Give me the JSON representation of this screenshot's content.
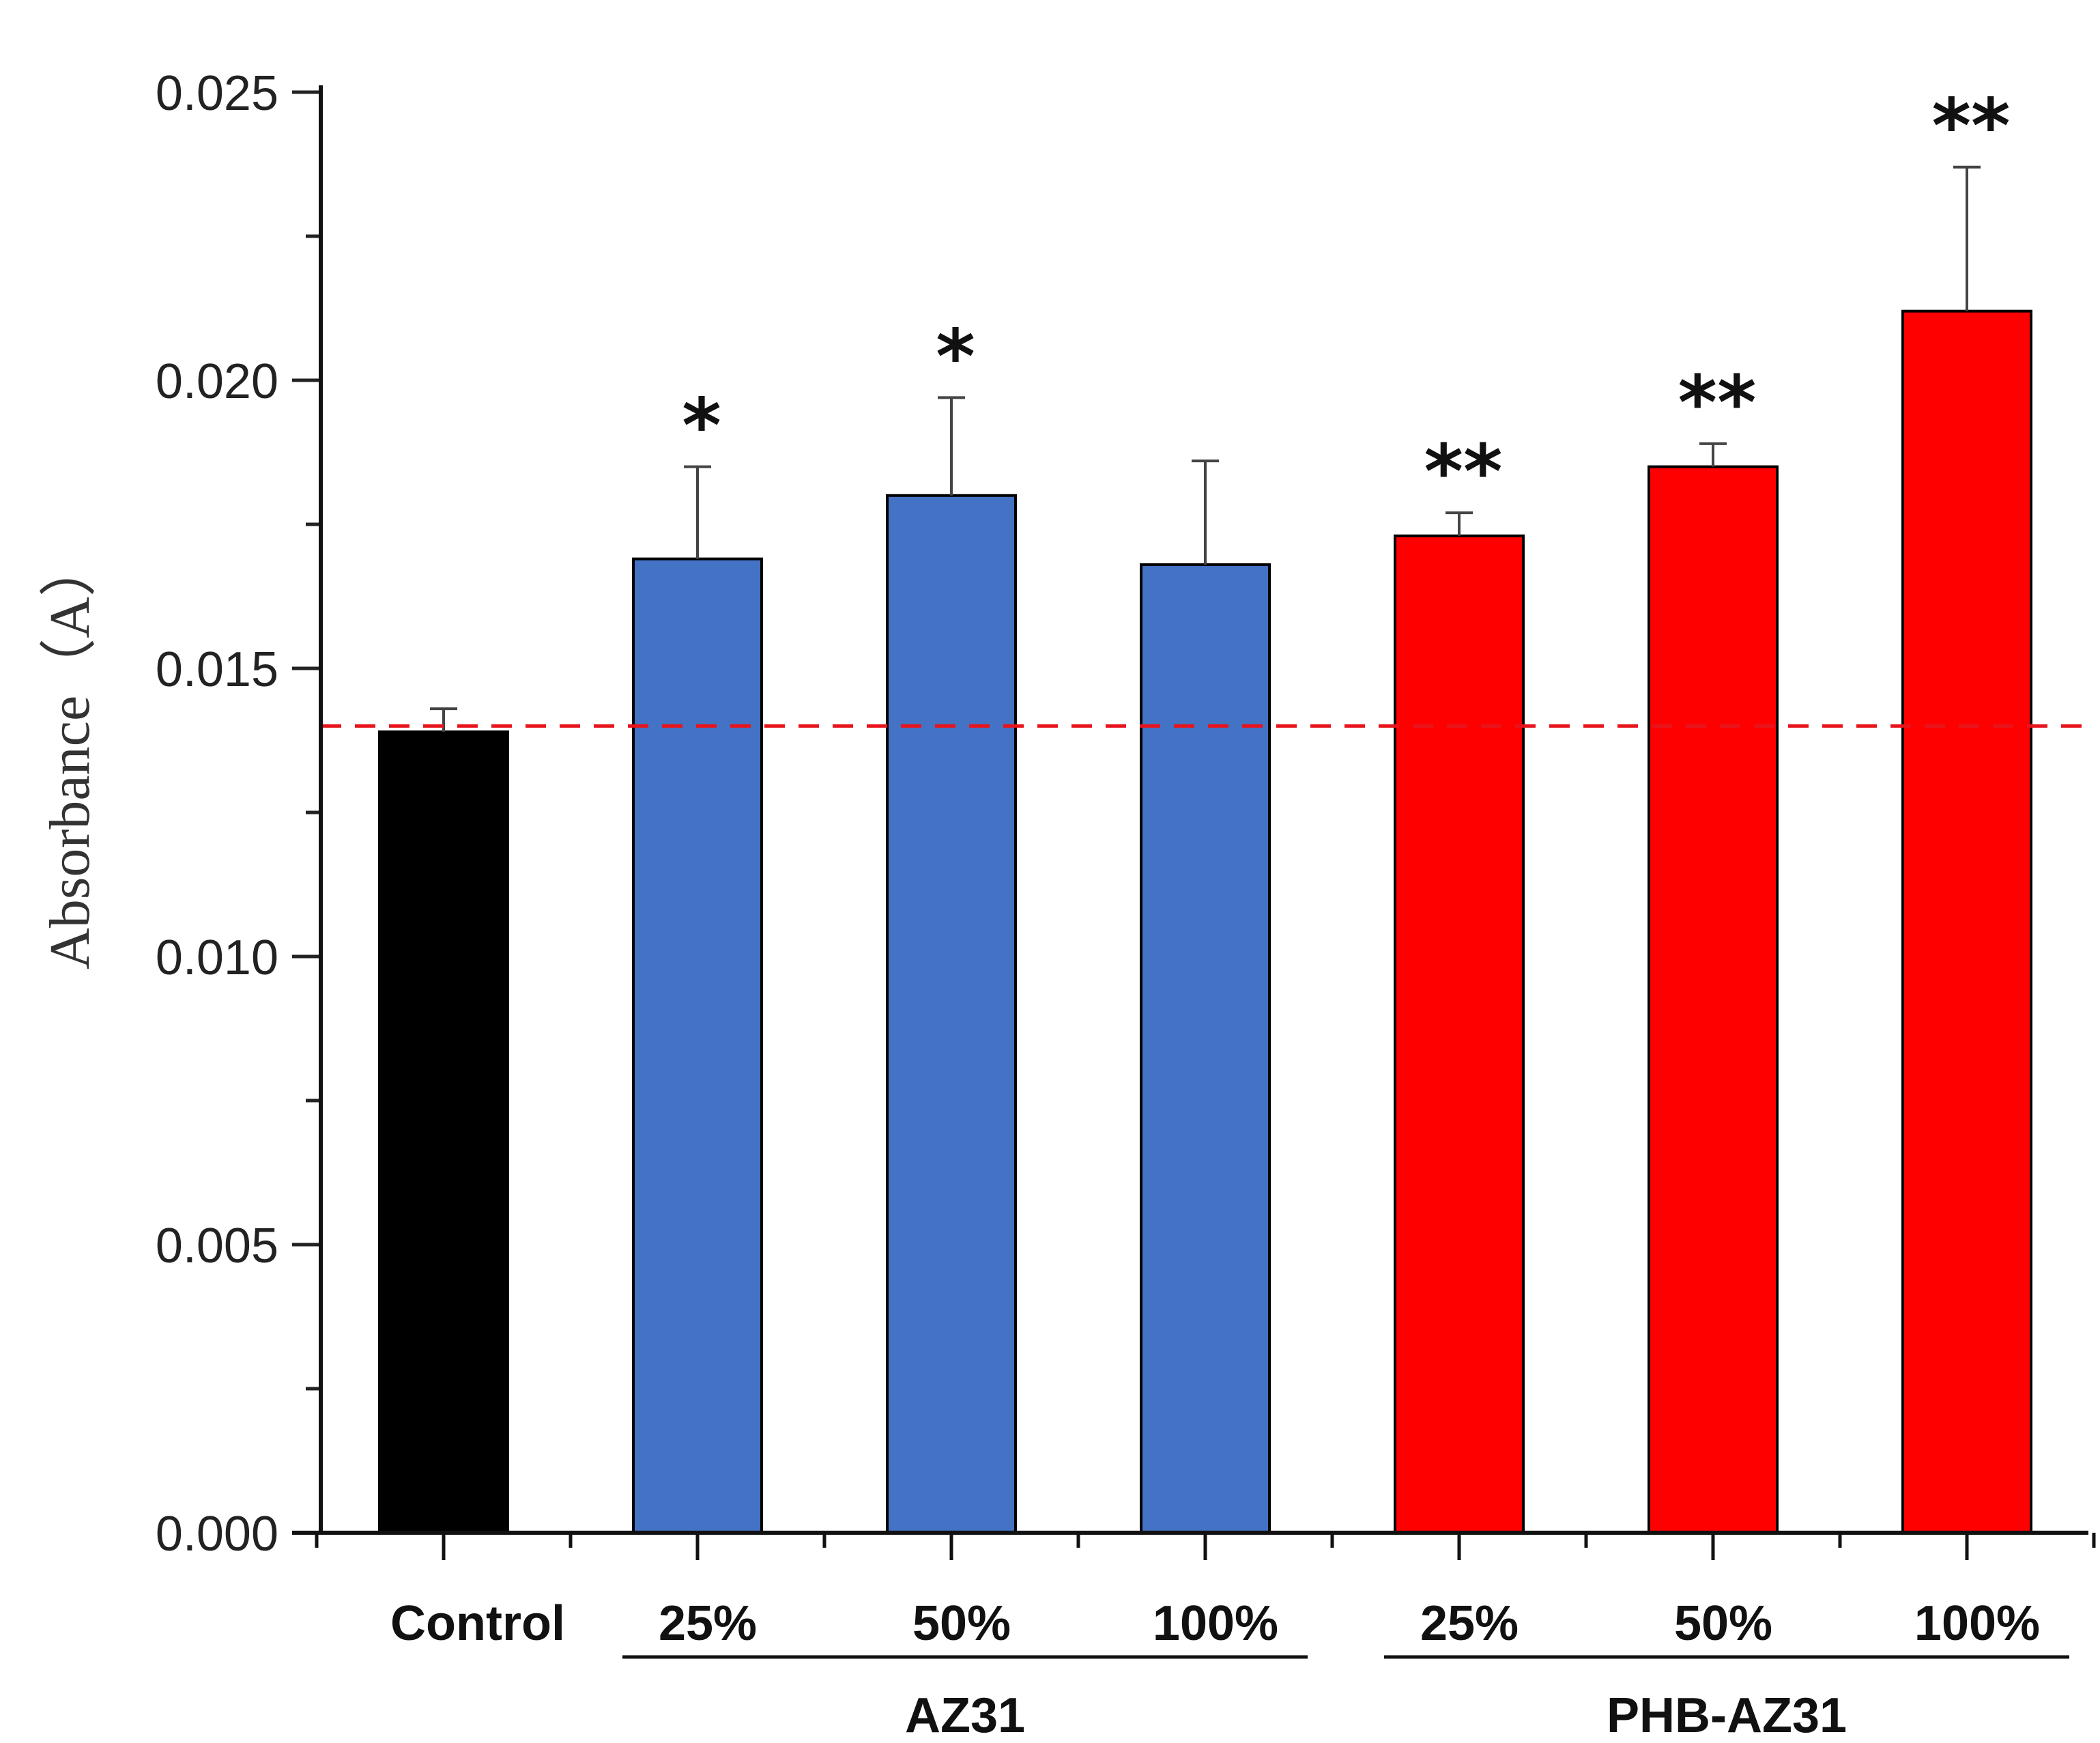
{
  "chart_data": {
    "type": "bar",
    "title": "",
    "xlabel": "",
    "ylabel": "Absorbance（A）",
    "ylim": [
      0,
      0.025
    ],
    "yticks": [
      "0.000",
      "0.005",
      "0.010",
      "0.015",
      "0.020",
      "0.025"
    ],
    "categories": [
      "Control",
      "25%",
      "50%",
      "100%",
      "25%",
      "50%",
      "100%"
    ],
    "values": [
      0.0139,
      0.0169,
      0.018,
      0.0168,
      0.0173,
      0.0185,
      0.0212
    ],
    "errors": [
      0.0004,
      0.0016,
      0.0017,
      0.0018,
      0.0004,
      0.0004,
      0.0025
    ],
    "significance": [
      "",
      "*",
      "*",
      "",
      "**",
      "**",
      "**"
    ],
    "groups": [
      {
        "label": "AZ31",
        "start": 1,
        "end": 3
      },
      {
        "label": "PHB-AZ31",
        "start": 4,
        "end": 6
      }
    ],
    "reference_line": 0.014,
    "colors": [
      "#000000",
      "#4472c4",
      "#4472c4",
      "#4472c4",
      "#ff0000",
      "#ff0000",
      "#ff0000"
    ],
    "reference_color": "#e8141c",
    "grid": false
  }
}
